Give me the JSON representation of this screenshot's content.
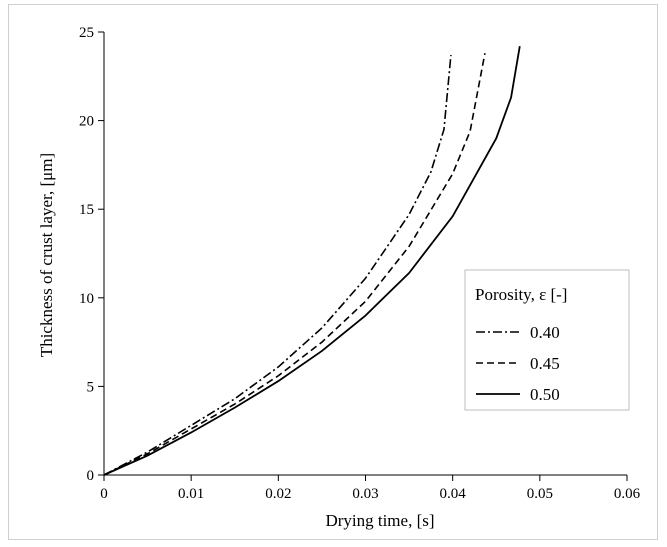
{
  "chart_data": {
    "type": "line",
    "title": "",
    "xlabel": "Drying time, [s]",
    "ylabel": "Thickness of crust layer, [μm]",
    "xlim": [
      0,
      0.06
    ],
    "ylim": [
      0,
      25
    ],
    "x_ticks": [
      "0",
      "0.01",
      "0.02",
      "0.03",
      "0.04",
      "0.05",
      "0.06"
    ],
    "y_ticks": [
      "0",
      "5",
      "10",
      "15",
      "20",
      "25"
    ],
    "grid": false,
    "legend": {
      "title": "Porosity, ε [-]",
      "placement": "right-middle"
    },
    "series": [
      {
        "name": "0.40",
        "line_style": "dash-dot",
        "color": "#000000",
        "points": [
          [
            0,
            0
          ],
          [
            0.005,
            1.3
          ],
          [
            0.01,
            2.8
          ],
          [
            0.015,
            4.3
          ],
          [
            0.02,
            6.1
          ],
          [
            0.025,
            8.3
          ],
          [
            0.03,
            11.1
          ],
          [
            0.035,
            14.7
          ],
          [
            0.0375,
            17.1
          ],
          [
            0.039,
            19.5
          ],
          [
            0.0398,
            23.7
          ]
        ]
      },
      {
        "name": "0.45",
        "line_style": "dashed",
        "color": "#000000",
        "points": [
          [
            0,
            0
          ],
          [
            0.005,
            1.2
          ],
          [
            0.01,
            2.6
          ],
          [
            0.015,
            4.0
          ],
          [
            0.02,
            5.6
          ],
          [
            0.025,
            7.5
          ],
          [
            0.03,
            9.8
          ],
          [
            0.035,
            12.9
          ],
          [
            0.04,
            17.0
          ],
          [
            0.042,
            19.4
          ],
          [
            0.0437,
            23.8
          ]
        ]
      },
      {
        "name": "0.50",
        "line_style": "solid",
        "color": "#000000",
        "points": [
          [
            0,
            0
          ],
          [
            0.005,
            1.1
          ],
          [
            0.01,
            2.4
          ],
          [
            0.015,
            3.8
          ],
          [
            0.02,
            5.3
          ],
          [
            0.025,
            7.0
          ],
          [
            0.03,
            9.0
          ],
          [
            0.035,
            11.4
          ],
          [
            0.04,
            14.6
          ],
          [
            0.045,
            19.0
          ],
          [
            0.0467,
            21.3
          ],
          [
            0.0477,
            24.2
          ]
        ]
      }
    ]
  }
}
